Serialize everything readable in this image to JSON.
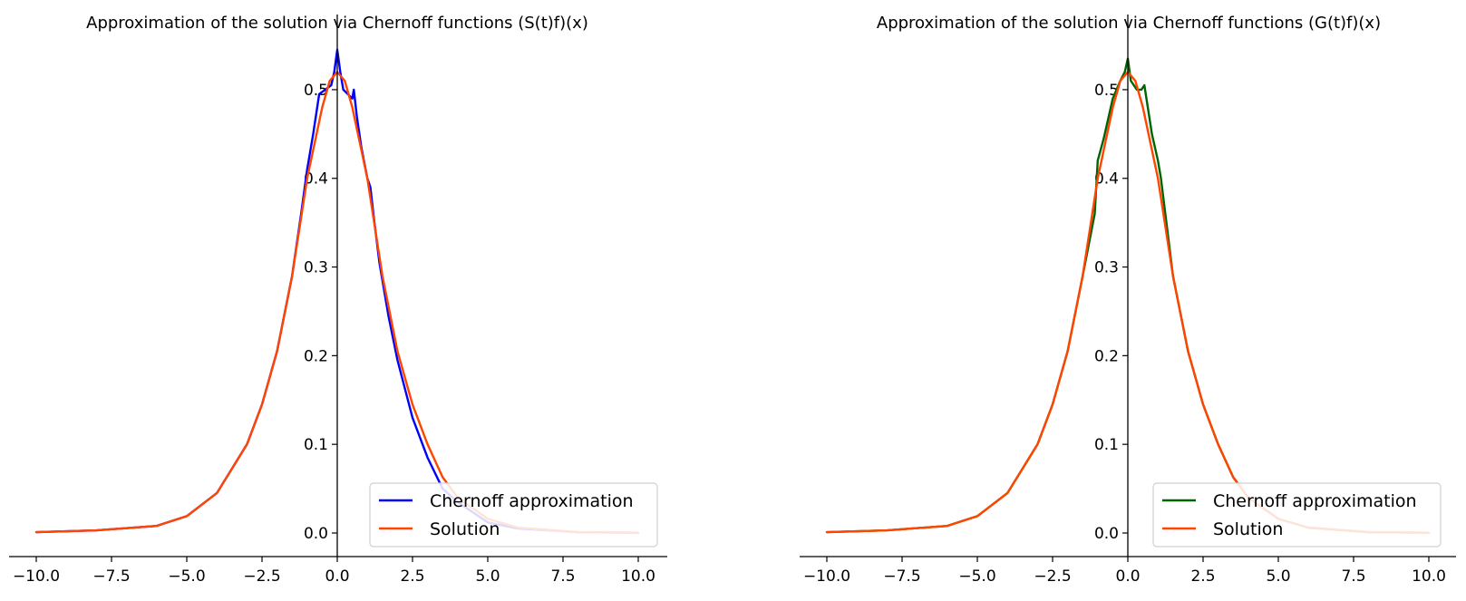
{
  "chart_data": [
    {
      "type": "line",
      "title": "Approximation of the solution via Chernoff functions (S(t)f)(x)",
      "xlim": [
        -10,
        10
      ],
      "ylim": [
        0,
        0.55
      ],
      "x_ticks": [
        -10.0,
        -7.5,
        -5.0,
        -2.5,
        0.0,
        2.5,
        5.0,
        7.5,
        10.0
      ],
      "x_tick_labels": [
        "−10.0",
        "−7.5",
        "−5.0",
        "−2.5",
        "0.0",
        "2.5",
        "5.0",
        "7.5",
        "10.0"
      ],
      "y_ticks": [
        0.0,
        0.1,
        0.2,
        0.3,
        0.4,
        0.5
      ],
      "y_tick_labels": [
        "0.0",
        "0.1",
        "0.2",
        "0.3",
        "0.4",
        "0.5"
      ],
      "spines": "centered axes (x at y=0, y at x=0)",
      "legend_position": "lower right",
      "series": [
        {
          "name": "Chernoff approximation",
          "color": "#0000ff",
          "x": [
            -10,
            -8,
            -6,
            -5,
            -4,
            -3,
            -2.5,
            -2,
            -1.5,
            -1.2,
            -1,
            -0.8,
            -0.6,
            -0.4,
            -0.2,
            -0.1,
            0,
            0.1,
            0.2,
            0.35,
            0.5,
            0.55,
            0.65,
            0.8,
            1,
            1.1,
            1.2,
            1.4,
            1.7,
            2,
            2.5,
            3,
            3.5,
            4,
            5,
            6,
            8,
            10
          ],
          "y": [
            0.001,
            0.003,
            0.008,
            0.019,
            0.045,
            0.1,
            0.145,
            0.205,
            0.29,
            0.36,
            0.41,
            0.45,
            0.495,
            0.5,
            0.505,
            0.52,
            0.545,
            0.52,
            0.5,
            0.495,
            0.49,
            0.5,
            0.47,
            0.435,
            0.4,
            0.39,
            0.36,
            0.305,
            0.245,
            0.195,
            0.13,
            0.085,
            0.05,
            0.035,
            0.012,
            0.005,
            0.001,
            0.0003
          ]
        },
        {
          "name": "Solution",
          "color": "#ff4500",
          "x": [
            -10,
            -8,
            -6,
            -5,
            -4,
            -3,
            -2.5,
            -2,
            -1.5,
            -1,
            -0.5,
            -0.25,
            0,
            0.25,
            0.5,
            1,
            1.5,
            2,
            2.5,
            3,
            3.5,
            4,
            5,
            6,
            8,
            10
          ],
          "y": [
            0.001,
            0.003,
            0.008,
            0.019,
            0.045,
            0.1,
            0.145,
            0.205,
            0.29,
            0.4,
            0.48,
            0.51,
            0.52,
            0.51,
            0.48,
            0.4,
            0.29,
            0.205,
            0.145,
            0.1,
            0.063,
            0.04,
            0.016,
            0.006,
            0.001,
            0.0003
          ]
        }
      ]
    },
    {
      "type": "line",
      "title": "Approximation of the solution via Chernoff functions (G(t)f)(x)",
      "xlim": [
        -10,
        10
      ],
      "ylim": [
        0,
        0.55
      ],
      "x_ticks": [
        -10.0,
        -7.5,
        -5.0,
        -2.5,
        0.0,
        2.5,
        5.0,
        7.5,
        10.0
      ],
      "x_tick_labels": [
        "−10.0",
        "−7.5",
        "−5.0",
        "−2.5",
        "0.0",
        "2.5",
        "5.0",
        "7.5",
        "10.0"
      ],
      "y_ticks": [
        0.0,
        0.1,
        0.2,
        0.3,
        0.4,
        0.5
      ],
      "y_tick_labels": [
        "0.0",
        "0.1",
        "0.2",
        "0.3",
        "0.4",
        "0.5"
      ],
      "spines": "centered axes (x at y=0, y at x=0)",
      "legend_position": "lower right",
      "series": [
        {
          "name": "Chernoff approximation",
          "color": "#006400",
          "x": [
            -10,
            -8,
            -6,
            -5,
            -4,
            -3,
            -2.5,
            -2,
            -1.5,
            -1.1,
            -1,
            -0.8,
            -0.5,
            -0.25,
            -0.1,
            0,
            0.1,
            0.3,
            0.45,
            0.55,
            0.8,
            1,
            1.1,
            1.5,
            2,
            2.5,
            3,
            3.5,
            4,
            5,
            6,
            8,
            10
          ],
          "y": [
            0.001,
            0.003,
            0.008,
            0.019,
            0.045,
            0.1,
            0.145,
            0.205,
            0.29,
            0.36,
            0.42,
            0.445,
            0.49,
            0.51,
            0.52,
            0.535,
            0.51,
            0.5,
            0.5,
            0.505,
            0.45,
            0.42,
            0.4,
            0.29,
            0.205,
            0.145,
            0.1,
            0.063,
            0.04,
            0.016,
            0.006,
            0.001,
            0.0003
          ]
        },
        {
          "name": "Solution",
          "color": "#ff4500",
          "x": [
            -10,
            -8,
            -6,
            -5,
            -4,
            -3,
            -2.5,
            -2,
            -1.5,
            -1,
            -0.5,
            -0.25,
            0,
            0.25,
            0.5,
            1,
            1.5,
            2,
            2.5,
            3,
            3.5,
            4,
            5,
            6,
            8,
            10
          ],
          "y": [
            0.001,
            0.003,
            0.008,
            0.019,
            0.045,
            0.1,
            0.145,
            0.205,
            0.29,
            0.4,
            0.48,
            0.51,
            0.52,
            0.51,
            0.48,
            0.4,
            0.29,
            0.205,
            0.145,
            0.1,
            0.063,
            0.04,
            0.016,
            0.006,
            0.001,
            0.0003
          ]
        }
      ]
    }
  ]
}
